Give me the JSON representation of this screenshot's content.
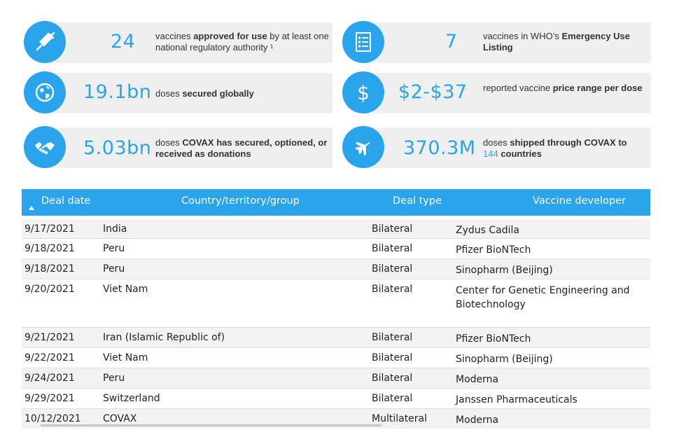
{
  "stats": [
    {
      "value": "24",
      "desc_pre": "vaccines ",
      "desc_bold": "approved for use",
      "desc_post": " by at least one national regulatory authority ¹",
      "icon": "syringe-icon"
    },
    {
      "value": "7",
      "desc_pre": "vaccines in WHO’s ",
      "desc_bold": "Emergency Use Listing",
      "desc_post": "",
      "icon": "checklist-icon"
    },
    {
      "value": "19.1bn",
      "desc_pre": "doses ",
      "desc_bold": "secured globally",
      "desc_post": "",
      "icon": "globe-icon"
    },
    {
      "value": "$2-$37",
      "desc_pre": "reported vaccine ",
      "desc_bold": "price range per dose",
      "desc_post": "",
      "icon": "dollar-icon"
    },
    {
      "value": "5.03bn",
      "desc_pre": "doses ",
      "desc_bold": "COVAX has secured, optioned, or received as donations",
      "desc_post": "",
      "icon": "handshake-icon"
    },
    {
      "value": "370.3M",
      "desc_pre": "doses ",
      "desc_bold": "shipped through COVAX",
      "desc_mid": " to ",
      "desc_num": "144",
      "desc_post": " countries",
      "icon": "airplane-icon"
    }
  ],
  "table": {
    "headers": [
      "Deal date",
      "Country/territory/group",
      "Deal type",
      "Vaccine developer"
    ],
    "rows": [
      [
        "9/17/2021",
        "India",
        "Bilateral",
        "Zydus Cadila"
      ],
      [
        "9/18/2021",
        "Peru",
        "Bilateral",
        "Pfizer BioNTech"
      ],
      [
        "9/18/2021",
        "Peru",
        "Bilateral",
        "Sinopharm (Beijing)"
      ],
      [
        "9/20/2021",
        "Viet Nam",
        "Bilateral",
        "Center for Genetic Engineering and Biotechnology"
      ],
      [
        "9/21/2021",
        "Iran (Islamic Republic of)",
        "Bilateral",
        "Pfizer BioNTech"
      ],
      [
        "9/22/2021",
        "Viet Nam",
        "Bilateral",
        "Sinopharm (Beijing)"
      ],
      [
        "9/24/2021",
        "Peru",
        "Bilateral",
        "Moderna"
      ],
      [
        "9/29/2021",
        "Switzerland",
        "Bilateral",
        "Janssen Pharmaceuticals"
      ],
      [
        "10/12/2021",
        "COVAX",
        "Multilateral",
        "Moderna"
      ]
    ]
  },
  "colors": {
    "accent": "#29a4ed",
    "card_bg": "#efefef"
  }
}
